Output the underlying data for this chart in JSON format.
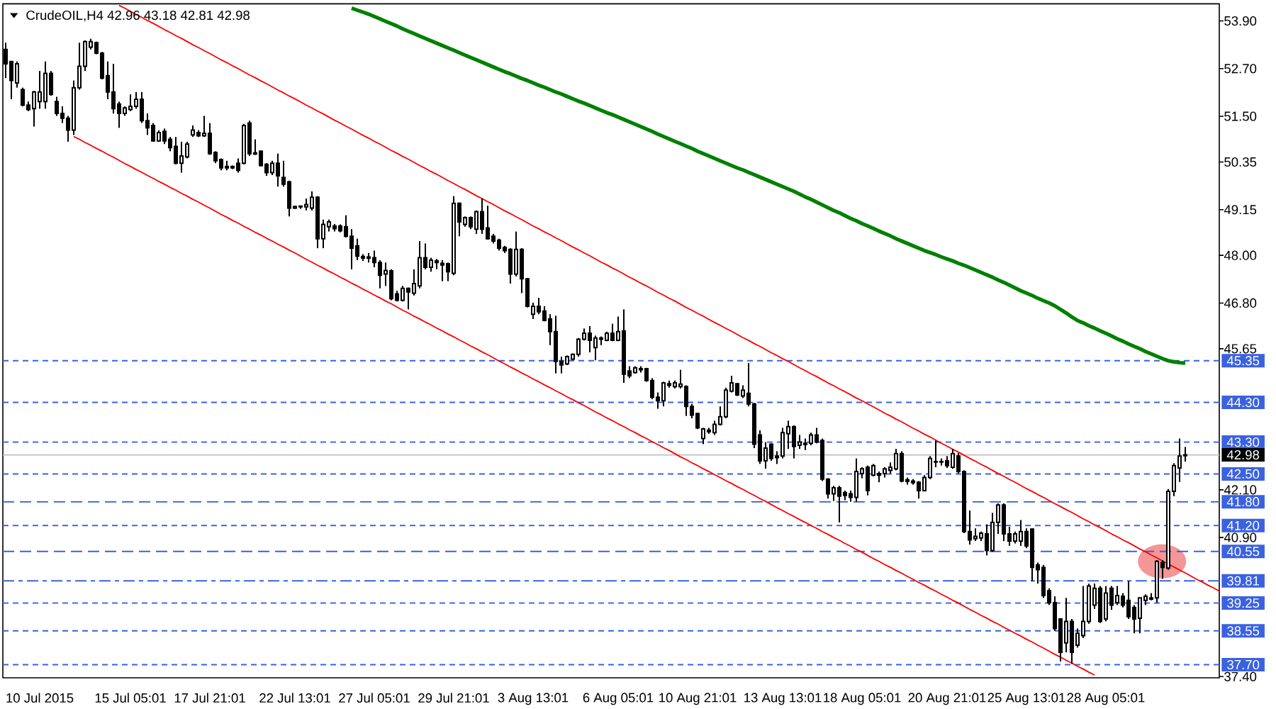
{
  "chart_data": {
    "type": "candlestick",
    "title": "CrudeOIL,H4 42.96 43.18 42.81 42.98",
    "color": "#000000",
    "categories": [
      null,
      null,
      null,
      null,
      null,
      null,
      "10 Jul 2015",
      null,
      null,
      null,
      null,
      null,
      null,
      null,
      null,
      null,
      null,
      null,
      null,
      null,
      null,
      null,
      "15 Jul 05:01",
      null,
      null,
      null,
      null,
      null,
      null,
      null,
      null,
      null,
      null,
      null,
      null,
      null,
      "17 Jul 21:01",
      null,
      null,
      null,
      null,
      null,
      null,
      null,
      null,
      null,
      null,
      null,
      null,
      null,
      null,
      "22 Jul 13:01",
      null,
      null,
      null,
      null,
      null,
      null,
      null,
      null,
      null,
      null,
      null,
      null,
      null,
      "27 Jul 05:01",
      null,
      null,
      null,
      null,
      null,
      null,
      null,
      null,
      null,
      null,
      null,
      null,
      null,
      "29 Jul 21:01",
      null,
      null,
      null,
      null,
      null,
      null,
      null,
      null,
      null,
      null,
      null,
      null,
      null,
      "3 Aug 13:01",
      null,
      null,
      null,
      null,
      null,
      null,
      null,
      null,
      null,
      null,
      null,
      null,
      null,
      null,
      "6 Aug 05:01",
      null,
      null,
      null,
      null,
      null,
      null,
      null,
      null,
      null,
      null,
      null,
      null,
      null,
      "10 Aug 21:01",
      null,
      null,
      null,
      null,
      null,
      null,
      null,
      null,
      null,
      null,
      null,
      null,
      null,
      null,
      "13 Aug 13:01",
      null,
      null,
      null,
      null,
      null,
      null,
      null,
      null,
      null,
      null,
      null,
      null,
      null,
      "18 Aug 05:01",
      null,
      null,
      null,
      null,
      null,
      null,
      null,
      null,
      null,
      null,
      null,
      null,
      null,
      null,
      "20 Aug 21:01",
      null,
      null,
      null,
      null,
      null,
      null,
      null,
      null,
      null,
      null,
      null,
      null,
      null,
      "25 Aug 13:01",
      null,
      null,
      null,
      null,
      null,
      null,
      null,
      null,
      null,
      null,
      null,
      null,
      null,
      "28 Aug 05:01",
      null,
      null,
      null,
      null,
      null,
      null,
      null,
      null,
      null,
      null,
      null,
      null,
      null,
      null,
      null,
      null,
      null,
      null,
      null,
      null
    ],
    "ohlc": [
      [
        53.18,
        53.35,
        52.46,
        52.82
      ],
      [
        52.88,
        52.88,
        51.93,
        52.4
      ],
      [
        52.34,
        52.88,
        52.22,
        52.82
      ],
      [
        52.17,
        52.22,
        51.75,
        51.78
      ],
      [
        51.78,
        51.87,
        51.63,
        51.67
      ],
      [
        51.69,
        52.14,
        51.24,
        52.11
      ],
      [
        51.87,
        52.64,
        51.69,
        52.11
      ],
      [
        51.87,
        52.88,
        51.69,
        52.58
      ],
      [
        52.58,
        52.64,
        52.02,
        52.05
      ],
      [
        51.87,
        51.99,
        51.51,
        51.57
      ],
      [
        51.57,
        51.75,
        51.33,
        51.45
      ],
      [
        51.45,
        51.51,
        50.86,
        51.15
      ],
      [
        51.15,
        52.4,
        51.03,
        52.22
      ],
      [
        52.22,
        53.35,
        52.17,
        52.76
      ],
      [
        52.76,
        53.41,
        52.64,
        53.38
      ],
      [
        53.24,
        53.45,
        53.18,
        53.38
      ],
      [
        53.35,
        53.38,
        53.06,
        53.09
      ],
      [
        53.09,
        53.12,
        52.43,
        52.46
      ],
      [
        52.52,
        52.88,
        51.93,
        52.11
      ],
      [
        52.11,
        52.82,
        51.57,
        51.69
      ],
      [
        51.81,
        51.87,
        51.21,
        51.57
      ],
      [
        51.57,
        51.75,
        51.51,
        51.71
      ],
      [
        51.67,
        52.05,
        51.63,
        51.75
      ],
      [
        51.75,
        52.11,
        51.69,
        51.93
      ],
      [
        51.93,
        52.11,
        51.33,
        51.39
      ],
      [
        51.39,
        51.57,
        51.03,
        51.21
      ],
      [
        51.27,
        51.33,
        50.86,
        50.88
      ],
      [
        50.88,
        51.15,
        50.86,
        51.09
      ],
      [
        51.12,
        51.19,
        50.8,
        50.88
      ],
      [
        50.92,
        50.98,
        50.62,
        50.71
      ],
      [
        50.74,
        50.98,
        50.29,
        50.32
      ],
      [
        50.32,
        50.86,
        50.08,
        50.5
      ],
      [
        50.48,
        50.86,
        50.44,
        50.8
      ],
      [
        51.03,
        51.27,
        50.98,
        51.15
      ],
      [
        51.09,
        51.15,
        50.98,
        51.01
      ],
      [
        51.01,
        51.51,
        50.98,
        51.07
      ],
      [
        51.07,
        51.33,
        50.53,
        50.56
      ],
      [
        50.59,
        50.62,
        50.32,
        50.38
      ],
      [
        50.41,
        50.44,
        50.14,
        50.2
      ],
      [
        50.2,
        50.38,
        50.14,
        50.24
      ],
      [
        50.24,
        50.26,
        50.17,
        50.2
      ],
      [
        50.32,
        50.44,
        50.08,
        50.14
      ],
      [
        50.32,
        51.31,
        50.29,
        51.27
      ],
      [
        51.33,
        51.39,
        50.5,
        50.56
      ],
      [
        50.58,
        50.92,
        50.53,
        50.55
      ],
      [
        50.62,
        50.64,
        50.24,
        50.26
      ],
      [
        50.29,
        50.32,
        50.0,
        50.08
      ],
      [
        50.08,
        50.38,
        50.02,
        50.32
      ],
      [
        50.32,
        50.56,
        49.73,
        50.0
      ],
      [
        49.96,
        50.38,
        49.73,
        49.79
      ],
      [
        49.85,
        49.88,
        48.98,
        49.19
      ],
      [
        49.19,
        49.25,
        49.17,
        49.23
      ],
      [
        49.22,
        49.25,
        49.17,
        49.24
      ],
      [
        49.22,
        49.43,
        49.13,
        49.28
      ],
      [
        49.19,
        49.61,
        49.13,
        49.46
      ],
      [
        49.46,
        49.49,
        48.18,
        48.42
      ],
      [
        48.42,
        48.9,
        48.18,
        48.78
      ],
      [
        48.72,
        48.9,
        48.6,
        48.84
      ],
      [
        48.74,
        48.79,
        48.6,
        48.67
      ],
      [
        48.74,
        48.78,
        48.58,
        48.62
      ],
      [
        48.72,
        49.01,
        48.45,
        48.48
      ],
      [
        48.48,
        48.66,
        47.65,
        48.18
      ],
      [
        48.24,
        48.42,
        47.88,
        47.98
      ],
      [
        47.97,
        48.03,
        47.86,
        47.93
      ],
      [
        47.93,
        48.06,
        47.82,
        47.96
      ],
      [
        47.94,
        48.12,
        47.7,
        47.82
      ],
      [
        47.82,
        47.88,
        47.17,
        47.5
      ],
      [
        47.53,
        47.82,
        47.23,
        47.62
      ],
      [
        47.61,
        47.65,
        46.87,
        46.91
      ],
      [
        47.03,
        47.11,
        46.84,
        46.87
      ],
      [
        46.87,
        47.23,
        46.84,
        47.17
      ],
      [
        47.17,
        47.19,
        46.64,
        47.08
      ],
      [
        47.05,
        47.65,
        46.99,
        47.29
      ],
      [
        47.23,
        48.36,
        47.17,
        47.94
      ],
      [
        47.94,
        48.3,
        47.65,
        47.7
      ],
      [
        47.7,
        47.94,
        47.59,
        47.88
      ],
      [
        47.86,
        47.91,
        47.65,
        47.82
      ],
      [
        47.8,
        47.88,
        47.35,
        47.76
      ],
      [
        47.79,
        47.82,
        47.35,
        47.59
      ],
      [
        47.55,
        49.49,
        47.5,
        49.31
      ],
      [
        49.31,
        49.33,
        48.48,
        48.84
      ],
      [
        48.78,
        48.98,
        48.72,
        48.95
      ],
      [
        48.95,
        48.98,
        48.66,
        48.72
      ],
      [
        48.66,
        49.13,
        48.54,
        49.1
      ],
      [
        49.1,
        49.43,
        48.54,
        48.66
      ],
      [
        48.69,
        49.25,
        48.4,
        48.42
      ],
      [
        48.48,
        48.54,
        48.3,
        48.36
      ],
      [
        48.38,
        48.42,
        48.12,
        48.18
      ],
      [
        48.2,
        48.24,
        48.06,
        48.12
      ],
      [
        48.15,
        48.18,
        47.29,
        47.53
      ],
      [
        47.53,
        48.6,
        47.47,
        48.15
      ],
      [
        48.15,
        48.18,
        47.05,
        47.41
      ],
      [
        47.41,
        47.43,
        46.69,
        46.72
      ],
      [
        46.52,
        46.81,
        46.4,
        46.72
      ],
      [
        46.72,
        46.93,
        46.52,
        46.58
      ],
      [
        46.6,
        46.72,
        46.34,
        46.36
      ],
      [
        46.4,
        46.52,
        45.74,
        46.08
      ],
      [
        46.08,
        46.48,
        45.03,
        45.33
      ],
      [
        45.33,
        45.45,
        45.03,
        45.24
      ],
      [
        45.27,
        45.48,
        45.24,
        45.45
      ],
      [
        45.39,
        45.53,
        45.36,
        45.51
      ],
      [
        45.51,
        45.92,
        45.45,
        45.89
      ],
      [
        45.89,
        46.16,
        45.86,
        46.04
      ],
      [
        46.04,
        46.22,
        45.56,
        45.86
      ],
      [
        45.68,
        45.98,
        45.36,
        45.92
      ],
      [
        45.92,
        45.96,
        45.74,
        45.89
      ],
      [
        45.86,
        46.08,
        45.84,
        46.04
      ],
      [
        46.04,
        46.28,
        45.84,
        45.86
      ],
      [
        45.86,
        46.46,
        45.84,
        46.08
      ],
      [
        46.1,
        46.64,
        44.79,
        45.01
      ],
      [
        45.09,
        45.21,
        44.91,
        44.97
      ],
      [
        45.05,
        45.21,
        45.03,
        45.17
      ],
      [
        45.15,
        45.21,
        45.05,
        45.12
      ],
      [
        45.15,
        45.17,
        44.82,
        44.85
      ],
      [
        44.85,
        44.91,
        44.38,
        44.43
      ],
      [
        44.43,
        44.55,
        44.14,
        44.34
      ],
      [
        44.34,
        44.82,
        44.2,
        44.79
      ],
      [
        44.77,
        44.85,
        44.67,
        44.73
      ],
      [
        44.7,
        44.85,
        44.65,
        44.79
      ],
      [
        44.7,
        45.12,
        44.65,
        44.76
      ],
      [
        44.7,
        44.73,
        43.96,
        44.2
      ],
      [
        44.2,
        44.26,
        43.9,
        43.98
      ],
      [
        44.02,
        44.02,
        43.63,
        43.66
      ],
      [
        43.39,
        43.66,
        43.25,
        43.63
      ],
      [
        43.6,
        43.66,
        43.51,
        43.56
      ],
      [
        43.54,
        43.84,
        43.48,
        43.75
      ],
      [
        43.75,
        44.2,
        43.72,
        43.94
      ],
      [
        43.94,
        44.67,
        43.9,
        44.61
      ],
      [
        44.58,
        44.97,
        44.55,
        44.79
      ],
      [
        44.77,
        44.79,
        44.46,
        44.49
      ],
      [
        44.46,
        44.73,
        44.41,
        44.61
      ],
      [
        44.53,
        45.29,
        44.2,
        44.26
      ],
      [
        44.26,
        44.29,
        43.15,
        43.25
      ],
      [
        43.48,
        43.6,
        42.75,
        42.83
      ],
      [
        42.83,
        43.3,
        42.63,
        43.15
      ],
      [
        43.25,
        43.27,
        42.83,
        42.89
      ],
      [
        42.95,
        43.07,
        42.75,
        42.91
      ],
      [
        42.95,
        43.66,
        42.89,
        43.54
      ],
      [
        43.51,
        43.84,
        43.13,
        43.69
      ],
      [
        43.69,
        43.72,
        42.89,
        43.19
      ],
      [
        43.22,
        43.48,
        43.13,
        43.3
      ],
      [
        43.27,
        43.39,
        43.1,
        43.24
      ],
      [
        43.27,
        43.54,
        43.22,
        43.48
      ],
      [
        43.48,
        43.66,
        43.27,
        43.3
      ],
      [
        43.34,
        43.39,
        42.32,
        42.37
      ],
      [
        42.37,
        42.39,
        41.88,
        42.0
      ],
      [
        42.0,
        42.2,
        41.82,
        42.15
      ],
      [
        42.15,
        42.2,
        41.28,
        41.94
      ],
      [
        42.03,
        42.08,
        41.84,
        41.96
      ],
      [
        42.0,
        42.08,
        41.8,
        41.91
      ],
      [
        41.91,
        42.89,
        41.8,
        42.56
      ],
      [
        42.51,
        42.67,
        42.39,
        42.63
      ],
      [
        42.67,
        42.71,
        41.96,
        42.08
      ],
      [
        42.47,
        42.75,
        42.44,
        42.71
      ],
      [
        42.51,
        42.56,
        42.29,
        42.47
      ],
      [
        42.51,
        42.67,
        42.41,
        42.63
      ],
      [
        42.59,
        42.79,
        42.51,
        42.67
      ],
      [
        42.63,
        43.13,
        42.59,
        43.01
      ],
      [
        43.01,
        43.07,
        42.29,
        42.32
      ],
      [
        42.35,
        42.41,
        42.23,
        42.31
      ],
      [
        42.32,
        42.37,
        42.23,
        42.28
      ],
      [
        42.29,
        42.32,
        41.88,
        42.08
      ],
      [
        42.08,
        42.47,
        42.06,
        42.41
      ],
      [
        42.41,
        42.95,
        42.37,
        42.89
      ],
      [
        42.8,
        43.34,
        42.67,
        42.81
      ],
      [
        42.81,
        42.89,
        42.71,
        42.8
      ],
      [
        42.83,
        42.95,
        42.65,
        42.71
      ],
      [
        42.67,
        43.13,
        42.63,
        43.01
      ],
      [
        42.95,
        43.03,
        42.51,
        42.56
      ],
      [
        42.56,
        42.59,
        41.01,
        41.05
      ],
      [
        41.05,
        41.58,
        40.72,
        40.84
      ],
      [
        40.87,
        41.13,
        40.81,
        40.93
      ],
      [
        40.89,
        41.05,
        40.81,
        41.01
      ],
      [
        40.99,
        41.23,
        40.45,
        40.57
      ],
      [
        40.57,
        41.52,
        40.54,
        41.28
      ],
      [
        41.28,
        41.76,
        40.99,
        41.72
      ],
      [
        41.72,
        41.76,
        40.81,
        40.99
      ],
      [
        40.99,
        41.17,
        40.69,
        40.81
      ],
      [
        40.81,
        41.05,
        40.75,
        40.99
      ],
      [
        40.81,
        41.34,
        40.69,
        41.05
      ],
      [
        41.05,
        41.13,
        40.63,
        40.69
      ],
      [
        41.11,
        41.13,
        39.8,
        40.15
      ],
      [
        40.21,
        40.27,
        39.74,
        40.09
      ],
      [
        40.15,
        40.21,
        39.38,
        39.44
      ],
      [
        39.56,
        39.62,
        39.2,
        39.26
      ],
      [
        39.26,
        39.42,
        38.55,
        38.61
      ],
      [
        38.85,
        38.87,
        37.78,
        38.01
      ],
      [
        38.25,
        39.38,
        38.01,
        38.79
      ],
      [
        38.79,
        38.85,
        37.72,
        38.01
      ],
      [
        38.19,
        38.61,
        38.13,
        38.49
      ],
      [
        38.43,
        39.68,
        38.37,
        38.79
      ],
      [
        38.79,
        39.74,
        38.73,
        39.68
      ],
      [
        39.2,
        39.74,
        39.1,
        39.62
      ],
      [
        39.62,
        39.68,
        38.75,
        38.79
      ],
      [
        38.85,
        39.68,
        38.79,
        39.5
      ],
      [
        39.62,
        39.68,
        39.08,
        39.2
      ],
      [
        39.26,
        39.68,
        39.2,
        39.44
      ],
      [
        39.42,
        39.5,
        39.14,
        39.2
      ],
      [
        39.32,
        39.8,
        38.85,
        38.91
      ],
      [
        39.14,
        39.2,
        38.49,
        38.85
      ],
      [
        38.87,
        39.38,
        38.49,
        39.38
      ],
      [
        39.32,
        39.47,
        39.2,
        39.42
      ],
      [
        39.38,
        39.5,
        39.32,
        39.35
      ],
      [
        39.38,
        40.33,
        39.26,
        40.3
      ],
      [
        40.27,
        40.33,
        39.86,
        40.15
      ],
      [
        40.13,
        42.12,
        40.09,
        42.06
      ],
      [
        42.06,
        42.77,
        41.94,
        42.71
      ],
      [
        42.65,
        43.39,
        42.3,
        42.95
      ],
      [
        42.96,
        43.18,
        42.81,
        42.98
      ],
      null,
      null,
      null,
      null,
      null,
      null
    ],
    "series": [
      {
        "type": "line",
        "color": "#008000",
        "values": [
          null,
          null,
          null,
          null,
          null,
          null,
          null,
          null,
          null,
          null,
          null,
          null,
          null,
          null,
          null,
          null,
          null,
          null,
          null,
          null,
          null,
          null,
          null,
          null,
          null,
          null,
          null,
          null,
          null,
          null,
          null,
          null,
          null,
          null,
          null,
          null,
          null,
          null,
          null,
          null,
          null,
          null,
          null,
          null,
          null,
          null,
          null,
          null,
          null,
          null,
          null,
          null,
          null,
          null,
          null,
          null,
          null,
          null,
          null,
          null,
          null,
          54.22,
          54.17,
          54.12,
          54.07,
          54.01,
          53.95,
          53.89,
          53.83,
          53.77,
          53.7,
          53.64,
          53.58,
          53.52,
          53.46,
          53.4,
          53.34,
          53.28,
          53.22,
          53.16,
          53.1,
          53.04,
          52.98,
          52.92,
          52.86,
          52.8,
          52.74,
          52.68,
          52.62,
          52.57,
          52.51,
          52.45,
          52.4,
          52.34,
          52.28,
          52.23,
          52.17,
          52.11,
          52.06,
          52.0,
          51.94,
          51.88,
          51.83,
          51.77,
          51.71,
          51.65,
          51.59,
          51.54,
          51.48,
          51.42,
          51.36,
          51.3,
          51.24,
          51.18,
          51.12,
          51.05,
          50.99,
          50.93,
          50.87,
          50.81,
          50.75,
          50.69,
          50.62,
          50.56,
          50.5,
          50.44,
          50.38,
          50.32,
          50.26,
          50.2,
          50.15,
          50.09,
          50.03,
          49.97,
          49.91,
          49.85,
          49.79,
          49.73,
          49.67,
          49.61,
          49.54,
          49.47,
          49.41,
          49.34,
          49.27,
          49.2,
          49.13,
          49.07,
          49.0,
          48.93,
          48.87,
          48.8,
          48.74,
          48.68,
          48.61,
          48.55,
          48.49,
          48.42,
          48.36,
          48.3,
          48.24,
          48.18,
          48.12,
          48.07,
          48.02,
          47.96,
          47.91,
          47.86,
          47.8,
          47.75,
          47.69,
          47.63,
          47.57,
          47.51,
          47.45,
          47.38,
          47.32,
          47.25,
          47.18,
          47.11,
          47.05,
          46.99,
          46.92,
          46.86,
          46.8,
          46.73,
          46.64,
          46.55,
          46.45,
          46.36,
          46.3,
          46.23,
          46.17,
          46.1,
          46.04,
          45.97,
          45.9,
          45.84,
          45.77,
          45.71,
          45.65,
          45.58,
          45.52,
          45.46,
          45.4,
          45.35,
          45.32,
          45.3,
          45.29,
          null,
          null,
          null,
          null,
          null,
          null
        ]
      },
      {
        "type": "line",
        "color": "#ff0000",
        "values": [
          null,
          null,
          null,
          null,
          null,
          null,
          null,
          null,
          null,
          null,
          null,
          null,
          50.99,
          50.92,
          50.84,
          50.77,
          50.69,
          50.62,
          50.54,
          50.47,
          50.39,
          50.31,
          50.24,
          50.16,
          50.09,
          50.01,
          49.94,
          49.86,
          49.79,
          49.71,
          49.64,
          49.56,
          49.49,
          49.41,
          49.34,
          49.26,
          49.19,
          49.11,
          49.03,
          48.96,
          48.88,
          48.81,
          48.73,
          48.66,
          48.58,
          48.51,
          48.43,
          48.36,
          48.28,
          48.21,
          48.13,
          48.06,
          47.98,
          47.9,
          47.83,
          47.75,
          47.68,
          47.6,
          47.53,
          47.45,
          47.38,
          47.3,
          47.23,
          47.15,
          47.08,
          47.0,
          46.93,
          46.85,
          46.78,
          46.7,
          46.62,
          46.55,
          46.47,
          46.4,
          46.32,
          46.25,
          46.17,
          46.1,
          46.02,
          45.95,
          45.87,
          45.8,
          45.72,
          45.65,
          45.57,
          45.5,
          45.42,
          45.34,
          45.27,
          45.19,
          45.12,
          45.04,
          44.97,
          44.89,
          44.82,
          44.74,
          44.67,
          44.59,
          44.52,
          44.44,
          44.37,
          44.29,
          44.22,
          44.14,
          44.06,
          43.99,
          43.91,
          43.84,
          43.76,
          43.69,
          43.61,
          43.54,
          43.46,
          43.39,
          43.31,
          43.24,
          43.16,
          43.09,
          43.01,
          42.93,
          42.86,
          42.78,
          42.71,
          42.63,
          42.56,
          42.48,
          42.41,
          42.33,
          42.26,
          42.18,
          42.11,
          42.03,
          41.96,
          41.88,
          41.81,
          41.73,
          41.65,
          41.58,
          41.5,
          41.43,
          41.35,
          41.28,
          41.2,
          41.13,
          41.05,
          40.98,
          40.9,
          40.83,
          40.75,
          40.68,
          40.6,
          40.53,
          40.45,
          40.37,
          40.3,
          40.22,
          40.15,
          40.07,
          40.0,
          39.92,
          39.85,
          39.77,
          39.7,
          39.62,
          39.55,
          39.47,
          39.4,
          39.32,
          39.25,
          39.17,
          39.09,
          39.02,
          38.94,
          38.87,
          38.79,
          38.72,
          38.64,
          38.57,
          38.49,
          38.42,
          38.34,
          38.27,
          38.19,
          38.12,
          38.04,
          37.96,
          37.89,
          37.81,
          37.74,
          37.66,
          37.59,
          37.51,
          37.44,
          null,
          null,
          null,
          null,
          null,
          null,
          null,
          null,
          null,
          null,
          null,
          null,
          null,
          null,
          null,
          null,
          null,
          null,
          null,
          null,
          null,
          null
        ]
      },
      {
        "type": "line",
        "color": "#ff0000",
        "values": [
          null,
          null,
          null,
          null,
          null,
          null,
          null,
          null,
          null,
          null,
          null,
          null,
          null,
          null,
          null,
          null,
          null,
          null,
          null,
          null,
          54.29,
          54.22,
          54.14,
          54.06,
          53.99,
          53.91,
          53.84,
          53.76,
          53.68,
          53.61,
          53.53,
          53.46,
          53.38,
          53.3,
          53.23,
          53.15,
          53.08,
          53.0,
          52.92,
          52.85,
          52.77,
          52.7,
          52.62,
          52.54,
          52.47,
          52.39,
          52.32,
          52.24,
          52.16,
          52.09,
          52.01,
          51.94,
          51.86,
          51.78,
          51.71,
          51.63,
          51.56,
          51.48,
          51.4,
          51.33,
          51.25,
          51.18,
          51.1,
          51.02,
          50.95,
          50.87,
          50.8,
          50.72,
          50.64,
          50.57,
          50.49,
          50.42,
          50.34,
          50.26,
          50.19,
          50.11,
          50.04,
          49.96,
          49.88,
          49.81,
          49.73,
          49.66,
          49.58,
          49.5,
          49.43,
          49.35,
          49.28,
          49.2,
          49.12,
          49.05,
          48.97,
          48.9,
          48.82,
          48.74,
          48.67,
          48.59,
          48.52,
          48.44,
          48.37,
          48.29,
          48.21,
          48.14,
          48.06,
          47.99,
          47.91,
          47.83,
          47.76,
          47.68,
          47.61,
          47.53,
          47.45,
          47.38,
          47.3,
          47.23,
          47.15,
          47.07,
          47.0,
          46.92,
          46.85,
          46.77,
          46.69,
          46.62,
          46.54,
          46.47,
          46.39,
          46.31,
          46.24,
          46.16,
          46.09,
          46.01,
          45.93,
          45.86,
          45.78,
          45.71,
          45.63,
          45.55,
          45.48,
          45.4,
          45.33,
          45.25,
          45.17,
          45.1,
          45.02,
          44.95,
          44.87,
          44.79,
          44.72,
          44.64,
          44.57,
          44.49,
          44.41,
          44.34,
          44.26,
          44.19,
          44.11,
          44.03,
          43.96,
          43.88,
          43.81,
          43.73,
          43.65,
          43.58,
          43.5,
          43.43,
          43.35,
          43.27,
          43.2,
          43.12,
          43.05,
          42.97,
          42.89,
          42.82,
          42.74,
          42.67,
          42.59,
          42.51,
          42.44,
          42.36,
          42.29,
          42.21,
          42.13,
          42.06,
          41.98,
          41.91,
          41.83,
          41.75,
          41.68,
          41.6,
          41.53,
          41.45,
          41.37,
          41.3,
          41.22,
          41.15,
          41.07,
          40.99,
          40.92,
          40.84,
          40.77,
          40.69,
          40.61,
          40.54,
          40.46,
          40.39,
          40.31,
          40.23,
          40.16,
          40.08,
          40.01,
          39.93,
          39.85,
          39.78,
          39.7,
          39.63,
          39.55
        ]
      }
    ],
    "ylim": [
      37.37,
      54.33
    ],
    "yticks": [
      {
        "value": 53.9,
        "label": "53.90"
      },
      {
        "value": 52.7,
        "label": "52.70"
      },
      {
        "value": 51.5,
        "label": "51.50"
      },
      50.35,
      49.15,
      {
        "value": 48,
        "label": "48.00"
      },
      {
        "value": 46.8,
        "label": "46.80"
      },
      45.65,
      {
        "value": 42.1,
        "label": "42.10"
      },
      {
        "value": 40.9,
        "label": "40.90"
      },
      {
        "value": 37.4,
        "label": "37.40"
      }
    ],
    "ref_lines": [
      {
        "axis": "y",
        "value": 45.35,
        "label": "45.35",
        "color": "#3a62e0",
        "line_style": "dashed"
      },
      {
        "axis": "y",
        "value": 44.3,
        "label": "44.30",
        "color": "#3a62e0",
        "line_style": "dashed"
      },
      {
        "axis": "y",
        "value": 43.3,
        "label": "43.30",
        "color": "#3a62e0",
        "line_style": "dashed"
      },
      {
        "axis": "y",
        "value": 42.98,
        "label": "42.98",
        "color": "#c0c0c0",
        "line_style": "solid"
      },
      {
        "axis": "y",
        "value": 42.5,
        "label": "42.50",
        "color": "#3a62e0",
        "line_style": "dashed"
      },
      {
        "axis": "y",
        "value": 41.8,
        "label": "41.80",
        "color": "#3a62e0",
        "line_style": "longdash"
      },
      {
        "axis": "y",
        "value": 41.2,
        "label": "41.20",
        "color": "#3a62e0",
        "line_style": "dashed"
      },
      {
        "axis": "y",
        "value": 40.55,
        "label": "40.55",
        "color": "#3a62e0",
        "line_style": "longdash"
      },
      {
        "axis": "y",
        "value": 39.81,
        "label": "39.81",
        "color": "#3a62e0",
        "line_style": "dashdot"
      },
      {
        "axis": "y",
        "value": 39.25,
        "label": "39.25",
        "color": "#3a62e0",
        "line_style": "dashed"
      },
      {
        "axis": "y",
        "value": 38.55,
        "label": "38.55",
        "color": "#3a62e0",
        "line_style": "dashed"
      },
      {
        "axis": "y",
        "value": 37.7,
        "label": "37.70",
        "color": "#3a62e0",
        "line_style": "dashed"
      }
    ]
  }
}
